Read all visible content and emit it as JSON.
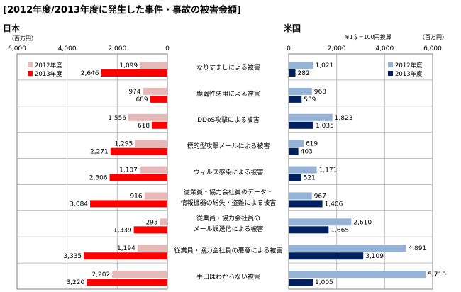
{
  "title": "[2012年度/2013年度に発生した事件・事故の被害金額]",
  "japan": {
    "region_label": "日本",
    "unit_label": "（百万円）",
    "ticks": [
      "6,000",
      "4,000",
      "2,000",
      "0"
    ]
  },
  "usa": {
    "region_label": "米国",
    "note": "※1＄=100円換算",
    "unit_label": "（百万円）",
    "ticks": [
      "0",
      "2,000",
      "4,000",
      "6,000"
    ]
  },
  "legend": [
    "2012年度",
    "2013年度"
  ],
  "colors": {
    "jp_2012": "#e6b9b8",
    "jp_2013": "#ff0000",
    "us_2012": "#95b3d7",
    "us_2013": "#002060",
    "grid": "#bfbfbf",
    "border": "#808080"
  },
  "chart_data": [
    {
      "type": "bar",
      "region": "日本",
      "categories": [
        [
          "なりすましによる被害"
        ],
        [
          "脆弱性悪用による被害"
        ],
        [
          "DDoS攻撃による被害"
        ],
        [
          "標的型攻撃メールによる被害"
        ],
        [
          "ウィルス感染による被害"
        ],
        [
          "従業員・協力会社員のデータ・",
          "情報機器の紛失・盗難による被害"
        ],
        [
          "従業員・協力会社員の",
          "メール誤送信による被害"
        ],
        [
          "従業員・協力会社員の悪意による被害"
        ],
        [
          "手口はわからない被害"
        ]
      ],
      "series": [
        {
          "name": "2012年度",
          "values": [
            1099,
            974,
            1556,
            1295,
            1107,
            916,
            293,
            1194,
            2202
          ],
          "labels": [
            "1,099",
            "974",
            "1,556",
            "1,295",
            "1,107",
            "916",
            "293",
            "1,194",
            "2,202"
          ]
        },
        {
          "name": "2013年度",
          "values": [
            2646,
            689,
            618,
            2271,
            2306,
            3084,
            1339,
            3335,
            3220
          ],
          "labels": [
            "2,646",
            "689",
            "618",
            "2,271",
            "2,306",
            "3,084",
            "1,339",
            "3,335",
            "3,220"
          ]
        }
      ],
      "xlim": [
        0,
        6000
      ],
      "orientation": "horizontal-reversed"
    },
    {
      "type": "bar",
      "region": "米国",
      "series": [
        {
          "name": "2012年度",
          "values": [
            1021,
            968,
            1823,
            619,
            1171,
            967,
            2610,
            4891,
            5710
          ],
          "labels": [
            "1,021",
            "968",
            "1,823",
            "619",
            "1,171",
            "967",
            "2,610",
            "4,891",
            "5,710"
          ]
        },
        {
          "name": "2013年度",
          "values": [
            282,
            539,
            1035,
            403,
            521,
            1406,
            1665,
            3109,
            1005
          ],
          "labels": [
            "282",
            "539",
            "1,035",
            "403",
            "521",
            "1,406",
            "1,665",
            "3,109",
            "1,005"
          ]
        }
      ],
      "xlim": [
        0,
        6000
      ],
      "orientation": "horizontal"
    }
  ]
}
